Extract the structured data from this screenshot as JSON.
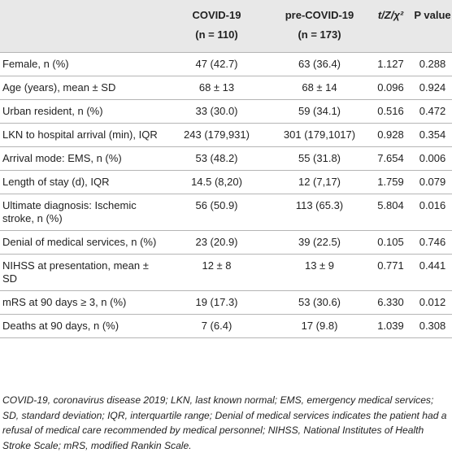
{
  "header": {
    "col1": "",
    "col2_line1": "COVID-19",
    "col2_line2": "(n = 110)",
    "col3_line1": "pre-COVID-19",
    "col3_line2": "(n = 173)",
    "col4": "t/Z/χ²",
    "col5": "P value"
  },
  "rows": [
    {
      "label": "Female, n (%)",
      "covid": "47 (42.7)",
      "pre": "63 (36.4)",
      "stat": "1.127",
      "p": "0.288"
    },
    {
      "label": "Age (years), mean ± SD",
      "covid": "68 ± 13",
      "pre": "68 ± 14",
      "stat": "0.096",
      "p": "0.924"
    },
    {
      "label": "Urban resident, n (%)",
      "covid": "33 (30.0)",
      "pre": "59 (34.1)",
      "stat": "0.516",
      "p": "0.472"
    },
    {
      "label": "LKN to hospital arrival (min), IQR",
      "covid": "243 (179,931)",
      "pre": "301 (179,1017)",
      "stat": "0.928",
      "p": "0.354"
    },
    {
      "label": "Arrival mode: EMS, n (%)",
      "covid": "53 (48.2)",
      "pre": "55 (31.8)",
      "stat": "7.654",
      "p": "0.006"
    },
    {
      "label": "Length of stay (d), IQR",
      "covid": "14.5 (8,20)",
      "pre": "12 (7,17)",
      "stat": "1.759",
      "p": "0.079"
    },
    {
      "label": "Ultimate diagnosis: Ischemic stroke, n (%)",
      "covid": "56 (50.9)",
      "pre": "113 (65.3)",
      "stat": "5.804",
      "p": "0.016"
    },
    {
      "label": "Denial of medical services, n (%)",
      "covid": "23 (20.9)",
      "pre": "39 (22.5)",
      "stat": "0.105",
      "p": "0.746"
    },
    {
      "label": "NIHSS at presentation, mean ± SD",
      "covid": "12 ± 8",
      "pre": "13 ± 9",
      "stat": "0.771",
      "p": "0.441"
    },
    {
      "label": "mRS at 90 days ≥ 3, n (%)",
      "covid": "19 (17.3)",
      "pre": "53 (30.6)",
      "stat": "6.330",
      "p": "0.012"
    },
    {
      "label": "Deaths at 90 days, n (%)",
      "covid": "7 (6.4)",
      "pre": "17 (9.8)",
      "stat": "1.039",
      "p": "0.308"
    }
  ],
  "footnote": "COVID-19, coronavirus disease 2019; LKN, last known normal; EMS, emergency medical services; SD, standard deviation; IQR, interquartile range; Denial of medical services indicates the patient had a refusal of medical care recommended by medical personnel; NIHSS, National Institutes of Health Stroke Scale; mRS, modified Rankin Scale."
}
